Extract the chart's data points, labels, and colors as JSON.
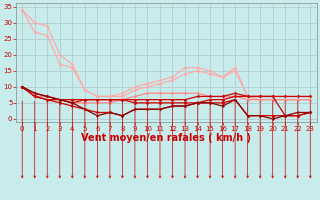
{
  "background_color": "#c8ecec",
  "grid_color": "#aaaaaa",
  "xlabel": "Vent moyen/en rafales ( km/h )",
  "xlabel_color": "#cc0000",
  "xlabel_fontsize": 7,
  "xtick_color": "#cc0000",
  "ytick_color": "#cc0000",
  "xlim": [
    -0.5,
    23.5
  ],
  "ylim": [
    -1,
    36
  ],
  "yticks": [
    0,
    5,
    10,
    15,
    20,
    25,
    30,
    35
  ],
  "xticks": [
    0,
    1,
    2,
    3,
    4,
    5,
    6,
    7,
    8,
    9,
    10,
    11,
    12,
    13,
    14,
    15,
    16,
    17,
    18,
    19,
    20,
    21,
    22,
    23
  ],
  "lines": [
    {
      "x": [
        0,
        1,
        2,
        3,
        4,
        5,
        6,
        7,
        8,
        9,
        10,
        11,
        12,
        13,
        14,
        15,
        16,
        17,
        18,
        19,
        20,
        21,
        22,
        23
      ],
      "y": [
        34,
        27,
        26,
        17,
        16,
        9,
        7,
        7,
        8,
        10,
        11,
        12,
        13,
        16,
        16,
        15,
        13,
        16,
        7,
        7,
        7,
        7,
        7,
        7
      ],
      "color": "#ffaaaa",
      "lw": 0.9,
      "marker": "D",
      "ms": 1.8
    },
    {
      "x": [
        0,
        1,
        2,
        3,
        4,
        5,
        6,
        7,
        8,
        9,
        10,
        11,
        12,
        13,
        14,
        15,
        16,
        17,
        18,
        19,
        20,
        21,
        22,
        23
      ],
      "y": [
        34,
        30,
        29,
        20,
        17,
        9,
        7,
        7,
        7,
        9,
        10,
        11,
        12,
        14,
        15,
        14,
        13,
        15,
        7,
        6,
        6,
        6,
        6,
        6
      ],
      "color": "#ffaaaa",
      "lw": 0.9,
      "marker": "D",
      "ms": 1.8
    },
    {
      "x": [
        0,
        1,
        2,
        3,
        4,
        5,
        6,
        7,
        8,
        9,
        10,
        11,
        12,
        13,
        14,
        15,
        16,
        17,
        18,
        19,
        20,
        21,
        22,
        23
      ],
      "y": [
        10,
        7,
        7,
        6,
        5,
        5,
        5,
        5,
        6,
        7,
        8,
        8,
        8,
        8,
        8,
        7,
        7,
        7,
        6,
        6,
        6,
        6,
        6,
        6
      ],
      "color": "#ff8888",
      "lw": 0.9,
      "marker": "D",
      "ms": 1.8
    },
    {
      "x": [
        0,
        1,
        2,
        3,
        4,
        5,
        6,
        7,
        8,
        9,
        10,
        11,
        12,
        13,
        14,
        15,
        16,
        17,
        18,
        19,
        20,
        21,
        22,
        23
      ],
      "y": [
        10,
        7,
        6,
        6,
        6,
        6,
        6,
        6,
        6,
        6,
        6,
        6,
        6,
        6,
        7,
        7,
        7,
        8,
        7,
        7,
        7,
        7,
        7,
        7
      ],
      "color": "#cc0000",
      "lw": 0.9,
      "marker": "D",
      "ms": 1.8
    },
    {
      "x": [
        0,
        1,
        2,
        3,
        4,
        5,
        6,
        7,
        8,
        9,
        10,
        11,
        12,
        13,
        14,
        15,
        16,
        17,
        18,
        19,
        20,
        21,
        22,
        23
      ],
      "y": [
        10,
        7,
        6,
        5,
        4,
        3,
        2,
        2,
        1,
        3,
        3,
        3,
        4,
        4,
        5,
        5,
        5,
        6,
        1,
        1,
        1,
        1,
        1,
        2
      ],
      "color": "#cc0000",
      "lw": 0.9,
      "marker": "D",
      "ms": 1.8
    },
    {
      "x": [
        0,
        1,
        2,
        3,
        4,
        5,
        6,
        7,
        8,
        9,
        10,
        11,
        12,
        13,
        14,
        15,
        16,
        17,
        18,
        19,
        20,
        21,
        22,
        23
      ],
      "y": [
        10,
        8,
        7,
        6,
        5,
        6,
        6,
        6,
        6,
        5,
        5,
        5,
        5,
        5,
        5,
        6,
        6,
        7,
        7,
        7,
        7,
        1,
        1,
        2
      ],
      "color": "#cc0000",
      "lw": 0.9,
      "marker": "D",
      "ms": 1.8
    },
    {
      "x": [
        0,
        1,
        2,
        3,
        4,
        5,
        6,
        7,
        8,
        9,
        10,
        11,
        12,
        13,
        14,
        15,
        16,
        17,
        18,
        19,
        20,
        21,
        22,
        23
      ],
      "y": [
        10,
        8,
        7,
        6,
        5,
        3,
        1,
        2,
        1,
        3,
        3,
        3,
        4,
        4,
        5,
        5,
        4,
        6,
        1,
        1,
        0,
        1,
        2,
        2
      ],
      "color": "#880000",
      "lw": 0.9,
      "marker": "D",
      "ms": 1.5
    }
  ],
  "arrow_color": "#cc0000",
  "tick_fontsize": 5.0
}
